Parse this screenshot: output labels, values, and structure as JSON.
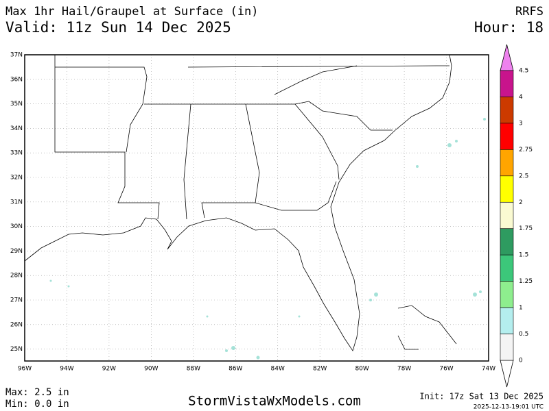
{
  "header": {
    "title": "Max 1hr Hail/Graupel at Surface (in)",
    "valid": "Valid: 11z Sun 14 Dec 2025",
    "model": "RRFS",
    "hour": "Hour: 18"
  },
  "map": {
    "lat_labels": [
      "37N",
      "36N",
      "35N",
      "34N",
      "33N",
      "32N",
      "31N",
      "30N",
      "29N",
      "28N",
      "27N",
      "26N",
      "25N"
    ],
    "lon_labels": [
      "96W",
      "94W",
      "92W",
      "90W",
      "88W",
      "86W",
      "84W",
      "82W",
      "80W",
      "78W",
      "76W",
      "74W"
    ]
  },
  "colorbar": {
    "labels": [
      "4.5",
      "4",
      "3",
      "2.75",
      "2.5",
      "2",
      "1.75",
      "1.5",
      "1.25",
      "1",
      "0.5",
      "0"
    ],
    "colors": [
      "#c8148c",
      "#cc3a00",
      "#ff0000",
      "#ffa500",
      "#ffff00",
      "#fafad2",
      "#2e9b60",
      "#3cc77a",
      "#8eee8e",
      "#b4eeee",
      "#f4f4f4"
    ],
    "over_color": "#ee82ee",
    "under_color": "#ffffff"
  },
  "footer": {
    "max": "Max: 2.5 in",
    "min": "Min: 0.0 in",
    "site": "StormVistaWxModels.com",
    "init": "Init: 17z Sat 13 Dec 2025",
    "timestamp": "2025-12-13-19:01 UTC"
  }
}
